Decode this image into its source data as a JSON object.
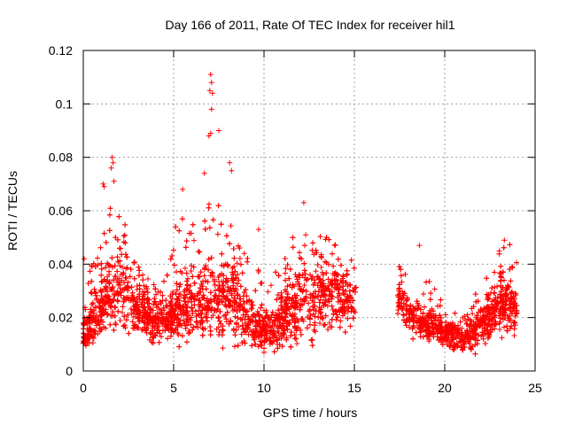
{
  "chart_data": {
    "type": "scatter",
    "title": "Day 166 of 2011, Rate Of TEC Index for receiver hil1",
    "xlabel": "GPS time / hours",
    "ylabel": "ROTI / TECUs",
    "xlim": [
      0,
      25
    ],
    "ylim": [
      0,
      0.12
    ],
    "xticks": [
      0,
      5,
      10,
      15,
      20,
      25
    ],
    "xtick_labels": [
      "0",
      "5",
      "10",
      "15",
      "20",
      "25"
    ],
    "yticks": [
      0,
      0.02,
      0.04,
      0.06,
      0.08,
      0.1,
      0.12
    ],
    "ytick_labels": [
      "0",
      "0.02",
      "0.04",
      "0.06",
      "0.08",
      "0.1",
      "0.12"
    ],
    "grid": true,
    "marker": "+",
    "color": "#ff0000",
    "series": [
      {
        "name": "hil1",
        "envelope": {
          "x": [
            0,
            0.5,
            1,
            1.5,
            2,
            2.5,
            3,
            3.5,
            4,
            4.5,
            5,
            5.5,
            6,
            6.5,
            7,
            7.5,
            8,
            8.5,
            9,
            9.5,
            10,
            10.5,
            11,
            11.5,
            12,
            12.5,
            13,
            13.5,
            14,
            14.5,
            15,
            17.5,
            18,
            18.5,
            19,
            19.5,
            20,
            20.5,
            21,
            21.5,
            22,
            22.5,
            23,
            23.5,
            24
          ],
          "low": [
            0.006,
            0.007,
            0.008,
            0.009,
            0.009,
            0.008,
            0.008,
            0.008,
            0.008,
            0.007,
            0.006,
            0.006,
            0.006,
            0.006,
            0.006,
            0.006,
            0.006,
            0.006,
            0.005,
            0.005,
            0.004,
            0.004,
            0.004,
            0.005,
            0.005,
            0.006,
            0.007,
            0.008,
            0.01,
            0.012,
            0.015,
            0.016,
            0.012,
            0.01,
            0.009,
            0.008,
            0.008,
            0.006,
            0.005,
            0.005,
            0.006,
            0.006,
            0.007,
            0.008,
            0.01
          ],
          "mid": [
            0.014,
            0.018,
            0.022,
            0.03,
            0.033,
            0.03,
            0.022,
            0.02,
            0.018,
            0.018,
            0.02,
            0.024,
            0.025,
            0.025,
            0.026,
            0.026,
            0.028,
            0.027,
            0.02,
            0.017,
            0.015,
            0.016,
            0.02,
            0.024,
            0.025,
            0.027,
            0.028,
            0.028,
            0.027,
            0.026,
            0.027,
            0.026,
            0.022,
            0.019,
            0.017,
            0.016,
            0.014,
            0.013,
            0.012,
            0.014,
            0.017,
            0.02,
            0.024,
            0.026,
            0.022
          ],
          "high": [
            0.035,
            0.04,
            0.052,
            0.062,
            0.06,
            0.052,
            0.04,
            0.036,
            0.035,
            0.04,
            0.055,
            0.06,
            0.056,
            0.05,
            0.07,
            0.064,
            0.062,
            0.058,
            0.046,
            0.042,
            0.038,
            0.04,
            0.044,
            0.05,
            0.05,
            0.052,
            0.062,
            0.054,
            0.048,
            0.046,
            0.04,
            0.04,
            0.034,
            0.03,
            0.036,
            0.03,
            0.025,
            0.022,
            0.02,
            0.026,
            0.034,
            0.036,
            0.045,
            0.048,
            0.046
          ]
        },
        "data_gap": [
          15.1,
          17.4
        ],
        "notable_points": [
          {
            "x": 7.05,
            "y": 0.111
          },
          {
            "x": 7.1,
            "y": 0.108
          },
          {
            "x": 7.0,
            "y": 0.105
          },
          {
            "x": 7.15,
            "y": 0.104
          },
          {
            "x": 7.1,
            "y": 0.098
          },
          {
            "x": 7.05,
            "y": 0.089
          },
          {
            "x": 6.95,
            "y": 0.088
          },
          {
            "x": 7.5,
            "y": 0.09
          },
          {
            "x": 1.6,
            "y": 0.08
          },
          {
            "x": 1.65,
            "y": 0.078
          },
          {
            "x": 1.55,
            "y": 0.076
          },
          {
            "x": 1.7,
            "y": 0.071
          },
          {
            "x": 1.1,
            "y": 0.07
          },
          {
            "x": 1.15,
            "y": 0.069
          },
          {
            "x": 8.1,
            "y": 0.078
          },
          {
            "x": 8.2,
            "y": 0.075
          },
          {
            "x": 6.7,
            "y": 0.074
          },
          {
            "x": 5.5,
            "y": 0.068
          },
          {
            "x": 12.2,
            "y": 0.063
          },
          {
            "x": 0.05,
            "y": 0.042
          },
          {
            "x": 9.7,
            "y": 0.053
          },
          {
            "x": 18.6,
            "y": 0.047
          },
          {
            "x": 23.3,
            "y": 0.049
          }
        ]
      }
    ]
  }
}
